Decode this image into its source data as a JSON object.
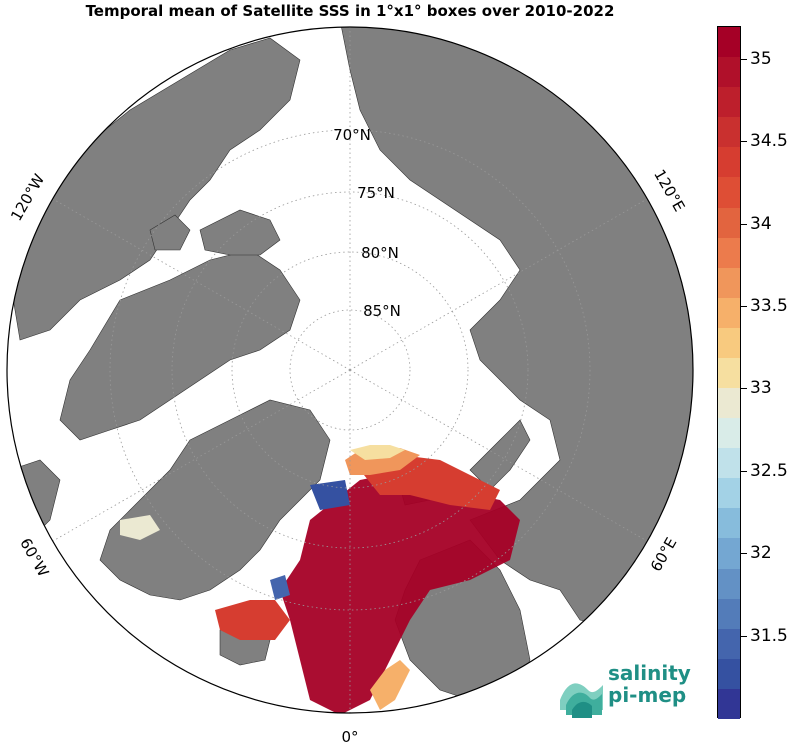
{
  "title": "Temporal mean of Satellite SSS in 1°x1° boxes over 2010-2022",
  "map": {
    "projection": "north-polar-stereographic",
    "lat_labels": [
      "70°N",
      "75°N",
      "80°N",
      "85°N"
    ],
    "lon_labels": [
      "120°W",
      "120°E",
      "60°W",
      "60°E",
      "0°"
    ],
    "land_color": "#808080",
    "ocean_color": "#ffffff",
    "ice_mask_color": "#ffffff",
    "grid_style": "dotted"
  },
  "colorbar": {
    "min": 31.0,
    "max": 35.2,
    "ticks": [
      "35",
      "34.5",
      "34",
      "33.5",
      "33",
      "32.5",
      "32",
      "31.5"
    ],
    "colors": [
      "#a50026",
      "#b0102a",
      "#bd1f2c",
      "#c9302f",
      "#d63d30",
      "#de4e35",
      "#e2643f",
      "#ec7b4c",
      "#f0965b",
      "#f6b06a",
      "#f8ca7f",
      "#f6dfa0",
      "#ebe9d2",
      "#d9ece8",
      "#c0e1ea",
      "#a3d2e6",
      "#87bcdc",
      "#74a7d2",
      "#6391c5",
      "#537cb9",
      "#4465ad",
      "#3551a1",
      "#313695"
    ]
  },
  "logo": {
    "line1": "salinity",
    "line2": "pi-mep",
    "color": "#1f8f85"
  }
}
